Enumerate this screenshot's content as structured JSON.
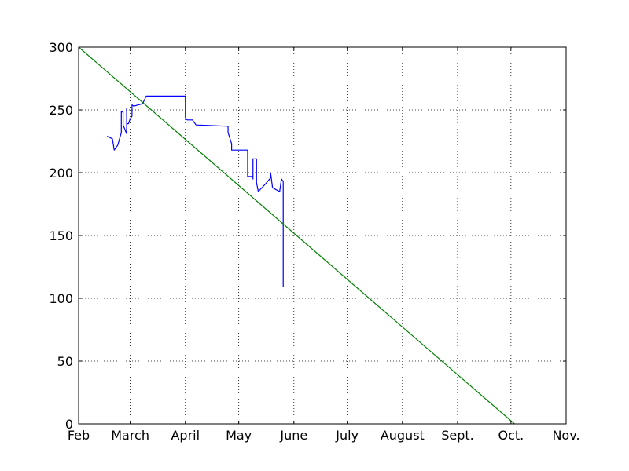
{
  "chart_data": {
    "type": "line",
    "title": "",
    "xlabel": "",
    "ylabel": "",
    "grid": true,
    "ylim": [
      0,
      300
    ],
    "xlim": [
      "2016-02-01",
      "2016-11-01"
    ],
    "x_ticks": [
      {
        "date": "2016-02-01",
        "label": "Feb"
      },
      {
        "date": "2016-03-01",
        "label": "March"
      },
      {
        "date": "2016-04-01",
        "label": "April"
      },
      {
        "date": "2016-05-01",
        "label": "May"
      },
      {
        "date": "2016-06-01",
        "label": "June"
      },
      {
        "date": "2016-07-01",
        "label": "July"
      },
      {
        "date": "2016-08-01",
        "label": "August"
      },
      {
        "date": "2016-09-01",
        "label": "Sept."
      },
      {
        "date": "2016-10-01",
        "label": "Oct."
      },
      {
        "date": "2016-11-01",
        "label": "Nov."
      }
    ],
    "y_ticks": [
      0,
      50,
      100,
      150,
      200,
      250,
      300
    ],
    "series": [
      {
        "color": "#0000ff",
        "points": [
          [
            "2016-02-17",
            229
          ],
          [
            "2016-02-20",
            227
          ],
          [
            "2016-02-21",
            218
          ],
          [
            "2016-02-23",
            222
          ],
          [
            "2016-02-25",
            232
          ],
          [
            "2016-02-25",
            249
          ],
          [
            "2016-02-26",
            248
          ],
          [
            "2016-02-26",
            238
          ],
          [
            "2016-02-28",
            231
          ],
          [
            "2016-02-28",
            251
          ],
          [
            "2016-02-28",
            239
          ],
          [
            "2016-02-29",
            239
          ],
          [
            "2016-03-01",
            243
          ],
          [
            "2016-03-02",
            245
          ],
          [
            "2016-03-02",
            254
          ],
          [
            "2016-03-03",
            253
          ],
          [
            "2016-03-08",
            255
          ],
          [
            "2016-03-10",
            261
          ],
          [
            "2016-04-01",
            261
          ],
          [
            "2016-04-01",
            244
          ],
          [
            "2016-04-02",
            242
          ],
          [
            "2016-04-05",
            242
          ],
          [
            "2016-04-07",
            238
          ],
          [
            "2016-04-25",
            237
          ],
          [
            "2016-04-25",
            232
          ],
          [
            "2016-04-27",
            223
          ],
          [
            "2016-04-27",
            218
          ],
          [
            "2016-05-06",
            218
          ],
          [
            "2016-05-06",
            197
          ],
          [
            "2016-05-09",
            197
          ],
          [
            "2016-05-09",
            195
          ],
          [
            "2016-05-09",
            211
          ],
          [
            "2016-05-11",
            211
          ],
          [
            "2016-05-11",
            192
          ],
          [
            "2016-05-12",
            185
          ],
          [
            "2016-05-16",
            191
          ],
          [
            "2016-05-19",
            196
          ],
          [
            "2016-05-19",
            199
          ],
          [
            "2016-05-20",
            188
          ],
          [
            "2016-05-24",
            185
          ],
          [
            "2016-05-25",
            195
          ],
          [
            "2016-05-26",
            193
          ],
          [
            "2016-05-26",
            177
          ],
          [
            "2016-05-26",
            109
          ]
        ]
      },
      {
        "color": "#008000",
        "points": [
          [
            "2016-02-01",
            300
          ],
          [
            "2016-10-03",
            0
          ]
        ]
      }
    ]
  }
}
